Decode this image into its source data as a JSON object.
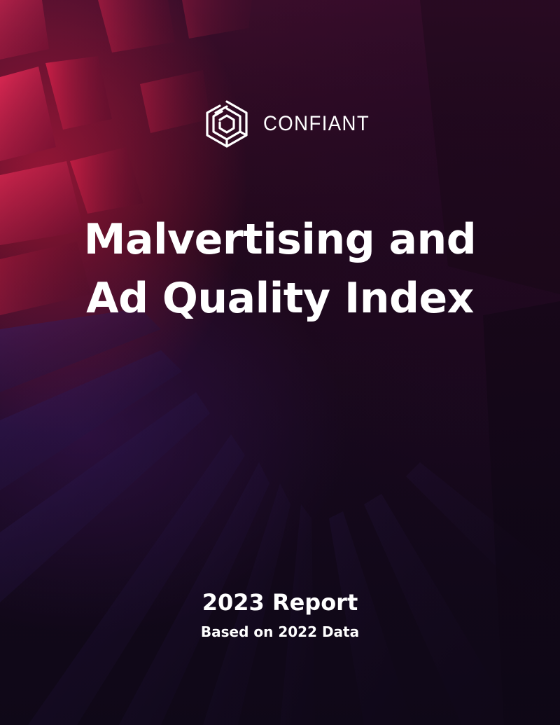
{
  "brand": {
    "name": "CONFIANT",
    "logo_icon": "confiant-hexagon-logo-icon"
  },
  "cover": {
    "title_line1": "Malvertising and",
    "title_line2": "Ad Quality Index",
    "report_label": "2023 Report",
    "report_subtitle": "Based on 2022 Data"
  },
  "colors": {
    "text": "#ffffff",
    "accent_red": "#d61e46",
    "background_dark": "#14081a",
    "purple": "#5a1e82"
  }
}
